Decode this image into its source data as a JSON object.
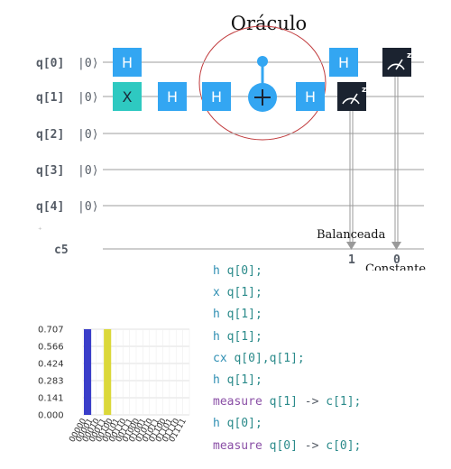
{
  "circuit": {
    "title": "Oráculo",
    "qubits": [
      {
        "name": "q[0]",
        "init": "|0⟩"
      },
      {
        "name": "q[1]",
        "init": "|0⟩"
      },
      {
        "name": "q[2]",
        "init": "|0⟩"
      },
      {
        "name": "q[3]",
        "init": "|0⟩"
      },
      {
        "name": "q[4]",
        "init": "|0⟩"
      }
    ],
    "classical_register": "c5",
    "gates": {
      "h": "H",
      "x": "X",
      "measure_superscript": "z"
    },
    "labels": {
      "balanced": "Balanceada",
      "constant": "Constante",
      "bit_1": "1",
      "bit_0": "0"
    },
    "colors": {
      "h_gate": "#33a6f2",
      "x_gate": "#2ec9c1",
      "cnot": "#33a6f2",
      "measure": "#1b2330",
      "wire": "#b0b0b0",
      "oracle_circle": "#c0393b"
    }
  },
  "code": [
    {
      "op": "h",
      "args": "q[0];"
    },
    {
      "op": "x",
      "args": "q[1];"
    },
    {
      "op": "h",
      "args": "q[1];"
    },
    {
      "op": "h",
      "args": "q[1];"
    },
    {
      "op": "cx",
      "args": "q[0],q[1];"
    },
    {
      "op": "h",
      "args": "q[1];"
    },
    {
      "op": "measure",
      "args": "q[1]",
      "arrow": "->",
      "target": "c[1];"
    },
    {
      "op": "h",
      "args": "q[0];"
    },
    {
      "op": "measure",
      "args": "q[0]",
      "arrow": "->",
      "target": "c[0];"
    }
  ],
  "chart_data": {
    "type": "bar",
    "categories": [
      "00000",
      "00001",
      "00010",
      "00011",
      "00100",
      "00101",
      "00110",
      "00111",
      "01000",
      "01001",
      "01010",
      "01011",
      "01100",
      "01101",
      "01110",
      "01111"
    ],
    "values": [
      0.707,
      0,
      0,
      0.707,
      0,
      0,
      0,
      0,
      0,
      0,
      0,
      0,
      0,
      0,
      0,
      0
    ],
    "bar_colors": [
      "#3a3ec9",
      null,
      null,
      "#dbd83a",
      null,
      null,
      null,
      null,
      null,
      null,
      null,
      null,
      null,
      null,
      null,
      null
    ],
    "yticks": [
      "0.707",
      "0.566",
      "0.424",
      "0.283",
      "0.141",
      "0.000"
    ],
    "ylim": [
      0,
      0.707
    ],
    "grid": true
  }
}
